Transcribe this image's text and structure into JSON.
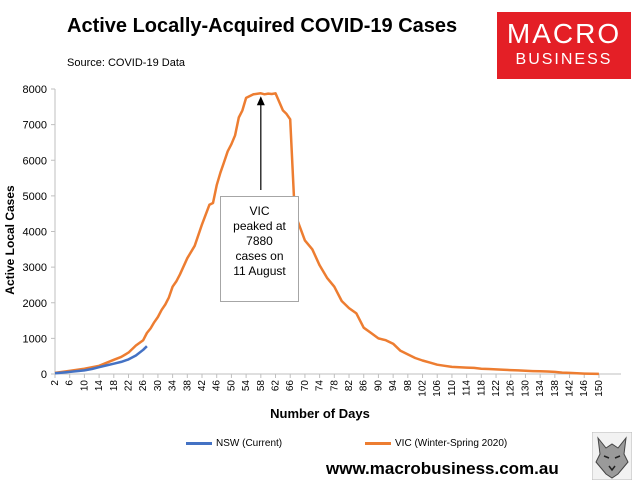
{
  "header": {
    "title": "Active Locally-Acquired COVID-19 Cases",
    "subtitle": "Source: COVID-19 Data"
  },
  "logo": {
    "line1": "MACRO",
    "line2": "BUSINESS"
  },
  "footer": {
    "url": "www.macrobusiness.com.au"
  },
  "colors": {
    "nsw": "#4472c4",
    "vic": "#ed7d31",
    "logo_bg": "#e41f26"
  },
  "icons": [
    "wolf-logo-icon",
    "arrow-up-icon"
  ],
  "chart_data": {
    "type": "line",
    "title": "Active Locally-Acquired COVID-19 Cases",
    "xlabel": "Number of Days",
    "ylabel": "Active Local Cases",
    "xlim": [
      2,
      156
    ],
    "ylim": [
      0,
      8000
    ],
    "y_ticks": [
      "0",
      "1000",
      "2000",
      "3000",
      "4000",
      "5000",
      "6000",
      "7000",
      "8000"
    ],
    "x_ticks": [
      "2",
      "6",
      "10",
      "14",
      "18",
      "22",
      "26",
      "30",
      "34",
      "38",
      "42",
      "46",
      "50",
      "54",
      "58",
      "62",
      "66",
      "70",
      "74",
      "78",
      "82",
      "86",
      "90",
      "94",
      "98",
      "102",
      "106",
      "110",
      "114",
      "118",
      "122",
      "126",
      "130",
      "134",
      "138",
      "142",
      "146",
      "150"
    ],
    "legend_position": "bottom",
    "grid": false,
    "series": [
      {
        "name": "NSW (Current)",
        "color": "#4472c4",
        "x": [
          2,
          4,
          6,
          8,
          10,
          12,
          14,
          16,
          18,
          20,
          22,
          24,
          26,
          27
        ],
        "y": [
          20,
          40,
          60,
          80,
          100,
          140,
          190,
          240,
          290,
          340,
          410,
          520,
          680,
          780
        ]
      },
      {
        "name": "VIC (Winter-Spring 2020)",
        "color": "#ed7d31",
        "x": [
          2,
          6,
          10,
          14,
          18,
          20,
          22,
          24,
          26,
          27,
          28,
          29,
          30,
          31,
          32,
          33,
          34,
          35,
          36,
          38,
          40,
          42,
          44,
          45,
          46,
          47,
          48,
          49,
          50,
          51,
          52,
          53,
          54,
          56,
          58,
          59,
          60,
          61,
          62,
          64,
          65,
          66,
          67,
          68,
          70,
          72,
          74,
          76,
          78,
          80,
          82,
          84,
          86,
          88,
          90,
          92,
          94,
          96,
          98,
          100,
          102,
          104,
          106,
          108,
          110,
          112,
          114,
          116,
          118,
          120,
          122,
          124,
          126,
          128,
          130,
          132,
          134,
          136,
          138,
          140,
          142,
          144,
          146,
          148,
          150
        ],
        "y": [
          30,
          90,
          150,
          230,
          400,
          480,
          600,
          800,
          950,
          1150,
          1280,
          1450,
          1600,
          1800,
          1950,
          2150,
          2450,
          2600,
          2800,
          3250,
          3600,
          4200,
          4750,
          4800,
          5300,
          5650,
          5950,
          6250,
          6450,
          6700,
          7200,
          7400,
          7750,
          7850,
          7880,
          7850,
          7870,
          7860,
          7880,
          7400,
          7300,
          7150,
          5000,
          4300,
          3750,
          3500,
          3050,
          2700,
          2450,
          2050,
          1850,
          1700,
          1300,
          1150,
          1000,
          950,
          850,
          650,
          550,
          450,
          380,
          320,
          260,
          230,
          200,
          190,
          180,
          170,
          150,
          140,
          130,
          120,
          110,
          100,
          90,
          80,
          75,
          70,
          60,
          40,
          30,
          20,
          10,
          5,
          2
        ]
      }
    ],
    "annotations": [
      {
        "text_lines": [
          "VIC",
          "peaked at",
          "7880",
          "cases on",
          "11 August"
        ],
        "points_to_x": 58,
        "points_to_y": 7880
      }
    ]
  }
}
